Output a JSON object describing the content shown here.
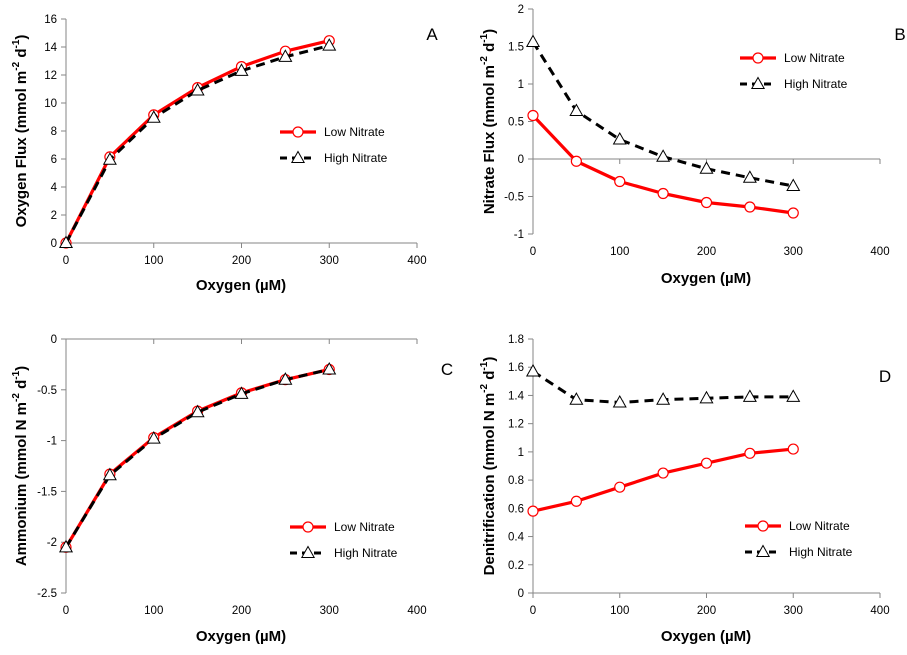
{
  "chart_data": [
    {
      "type": "line",
      "panel": "A",
      "xlabel": "Oxygen (µM)",
      "ylabel": "Oxygen Flux (mmol m⁻² d⁻¹)",
      "xlim": [
        0,
        400
      ],
      "ylim": [
        0,
        16
      ],
      "xticks": [
        "0",
        "100",
        "200",
        "300",
        "400"
      ],
      "yticks": [
        "0",
        "2",
        "4",
        "6",
        "8",
        "10",
        "12",
        "14",
        "16"
      ],
      "grid": false,
      "legend": "center-right",
      "x": [
        0,
        50,
        100,
        150,
        200,
        250,
        300
      ],
      "series": [
        {
          "name": "Low Nitrate",
          "values": [
            0,
            6.15,
            9.15,
            11.1,
            12.6,
            13.7,
            14.45
          ],
          "color": "#ff0000",
          "style": "solid",
          "marker": "circle"
        },
        {
          "name": "High Nitrate",
          "values": [
            0,
            5.95,
            8.95,
            10.9,
            12.3,
            13.3,
            14.1
          ],
          "color": "#000000",
          "style": "dashed",
          "marker": "triangle"
        }
      ]
    },
    {
      "type": "line",
      "panel": "B",
      "xlabel": "Oxygen (µM)",
      "ylabel": "Nitrate  Flux (mmol m⁻² d⁻¹)",
      "xlim": [
        0,
        400
      ],
      "ylim": [
        -1,
        2
      ],
      "xticks": [
        "0",
        "100",
        "200",
        "300",
        "400"
      ],
      "yticks": [
        "-1",
        "-0.5",
        "0",
        "0.5",
        "1",
        "1.5",
        "2"
      ],
      "grid": false,
      "legend": "top-right",
      "x": [
        0,
        50,
        100,
        150,
        200,
        250,
        300
      ],
      "series": [
        {
          "name": "Low Nitrate",
          "values": [
            0.58,
            -0.03,
            -0.3,
            -0.46,
            -0.58,
            -0.64,
            -0.72
          ],
          "color": "#ff0000",
          "style": "solid",
          "marker": "circle"
        },
        {
          "name": "High Nitrate",
          "values": [
            1.56,
            0.64,
            0.26,
            0.03,
            -0.13,
            -0.25,
            -0.36
          ],
          "color": "#000000",
          "style": "dashed",
          "marker": "triangle"
        }
      ]
    },
    {
      "type": "line",
      "panel": "C",
      "xlabel": "Oxygen (µM)",
      "ylabel": "Ammonium  (mmol N m⁻² d⁻¹)",
      "xlim": [
        0,
        400
      ],
      "ylim": [
        -2.5,
        0
      ],
      "xticks": [
        "0",
        "100",
        "200",
        "300",
        "400"
      ],
      "yticks": [
        "-2.5",
        "-2",
        "-1.5",
        "-1",
        "-0.5",
        "0"
      ],
      "grid": false,
      "legend": "bottom-right",
      "x": [
        0,
        50,
        100,
        150,
        200,
        250,
        300
      ],
      "series": [
        {
          "name": "Low Nitrate",
          "values": [
            -2.05,
            -1.33,
            -0.97,
            -0.71,
            -0.53,
            -0.4,
            -0.3
          ],
          "color": "#ff0000",
          "style": "solid",
          "marker": "circle"
        },
        {
          "name": "High Nitrate",
          "values": [
            -2.05,
            -1.34,
            -0.98,
            -0.72,
            -0.54,
            -0.4,
            -0.3
          ],
          "color": "#000000",
          "style": "dashed",
          "marker": "triangle"
        }
      ]
    },
    {
      "type": "line",
      "panel": "D",
      "xlabel": "Oxygen (µM)",
      "ylabel": "Denitrification (mmol N m⁻² d⁻¹)",
      "xlim": [
        0,
        400
      ],
      "ylim": [
        0,
        1.8
      ],
      "xticks": [
        "0",
        "100",
        "200",
        "300",
        "400"
      ],
      "yticks": [
        "0",
        "0.2",
        "0.4",
        "0.6",
        "0.8",
        "1",
        "1.2",
        "1.4",
        "1.6",
        "1.8"
      ],
      "grid": false,
      "legend": "bottom-right",
      "x": [
        0,
        50,
        100,
        150,
        200,
        250,
        300
      ],
      "series": [
        {
          "name": "Low Nitrate",
          "values": [
            0.58,
            0.65,
            0.75,
            0.85,
            0.92,
            0.99,
            1.02
          ],
          "color": "#ff0000",
          "style": "solid",
          "marker": "circle"
        },
        {
          "name": "High Nitrate",
          "values": [
            1.57,
            1.37,
            1.35,
            1.37,
            1.38,
            1.39,
            1.39
          ],
          "color": "#000000",
          "style": "dashed",
          "marker": "triangle"
        }
      ]
    }
  ]
}
